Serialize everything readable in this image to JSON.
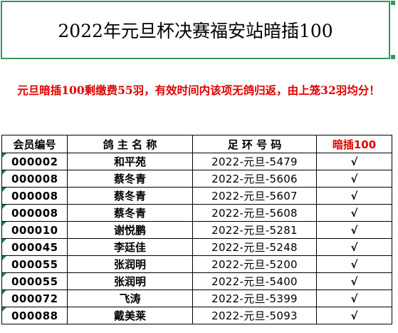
{
  "title": "2022年元旦杯决赛福安站暗插100",
  "notice": "元旦暗插100剩缴费55羽，有效时间内该项无鸽归返，由上笼32羽均分！",
  "table": {
    "headers": [
      "会员编号",
      "鸽 主 名 称",
      "足 环 号 码",
      "暗插100"
    ],
    "rows": [
      {
        "member_id": "000002",
        "owner": "和平苑",
        "ring": "2022-元旦-5479",
        "check": "√"
      },
      {
        "member_id": "000008",
        "owner": "蔡冬青",
        "ring": "2022-元旦-5606",
        "check": "√"
      },
      {
        "member_id": "000008",
        "owner": "蔡冬青",
        "ring": "2022-元旦-5607",
        "check": "√"
      },
      {
        "member_id": "000008",
        "owner": "蔡冬青",
        "ring": "2022-元旦-5608",
        "check": "√"
      },
      {
        "member_id": "000010",
        "owner": "谢悦鹏",
        "ring": "2022-元旦-5281",
        "check": "√"
      },
      {
        "member_id": "000045",
        "owner": "李廷佳",
        "ring": "2022-元旦-5248",
        "check": "√"
      },
      {
        "member_id": "000055",
        "owner": "张润明",
        "ring": "2022-元旦-5200",
        "check": "√"
      },
      {
        "member_id": "000055",
        "owner": "张润明",
        "ring": "2022-元旦-5400",
        "check": "√"
      },
      {
        "member_id": "000072",
        "owner": "飞涛",
        "ring": "2022-元旦-5399",
        "check": "√"
      },
      {
        "member_id": "000088",
        "owner": "戴美莱",
        "ring": "2022-元旦-5093",
        "check": "√"
      }
    ]
  },
  "colors": {
    "title_border": "#2e9a5a",
    "notice": "#e00000",
    "header_highlight": "#e00000",
    "cell_marker": "#1e8a4a"
  }
}
